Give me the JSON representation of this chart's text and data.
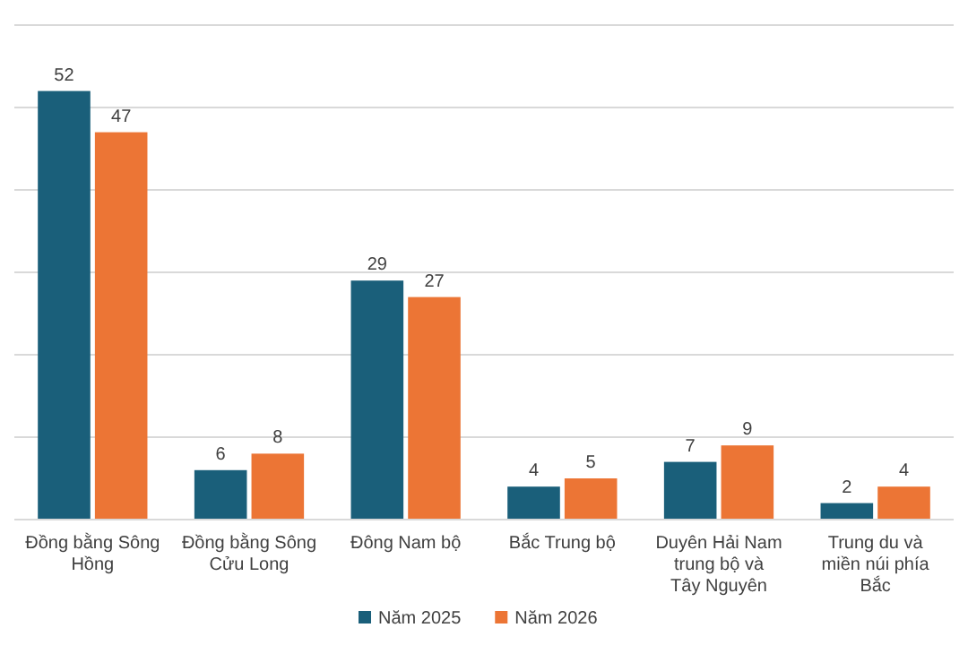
{
  "chart_data": {
    "type": "bar",
    "categories": [
      "Đồng bằng Sông Hồng",
      "Đồng bằng Sông Cửu Long",
      "Đông Nam bộ",
      "Bắc Trung bộ",
      "Duyên Hải Nam trung bộ và Tây Nguyên",
      "Trung du và miền núi phía Bắc"
    ],
    "series": [
      {
        "name": "Năm 2025",
        "color": "#1a5f7a",
        "values": [
          52,
          6,
          29,
          4,
          7,
          2
        ]
      },
      {
        "name": "Năm 2026",
        "color": "#ec7535",
        "values": [
          47,
          8,
          27,
          5,
          9,
          4
        ]
      }
    ],
    "ylim": [
      0,
      60
    ],
    "yticks": [
      {
        "value": 0,
        "label": null
      },
      {
        "value": 10,
        "label": null
      },
      {
        "value": 20,
        "label": null
      },
      {
        "value": 30,
        "label": null
      },
      {
        "value": 40,
        "label": null
      },
      {
        "value": 50,
        "label": null
      },
      {
        "value": 60,
        "label": null
      }
    ],
    "grid": "y",
    "tick_labels": "x",
    "data_labels": true,
    "legend": "bottom"
  }
}
